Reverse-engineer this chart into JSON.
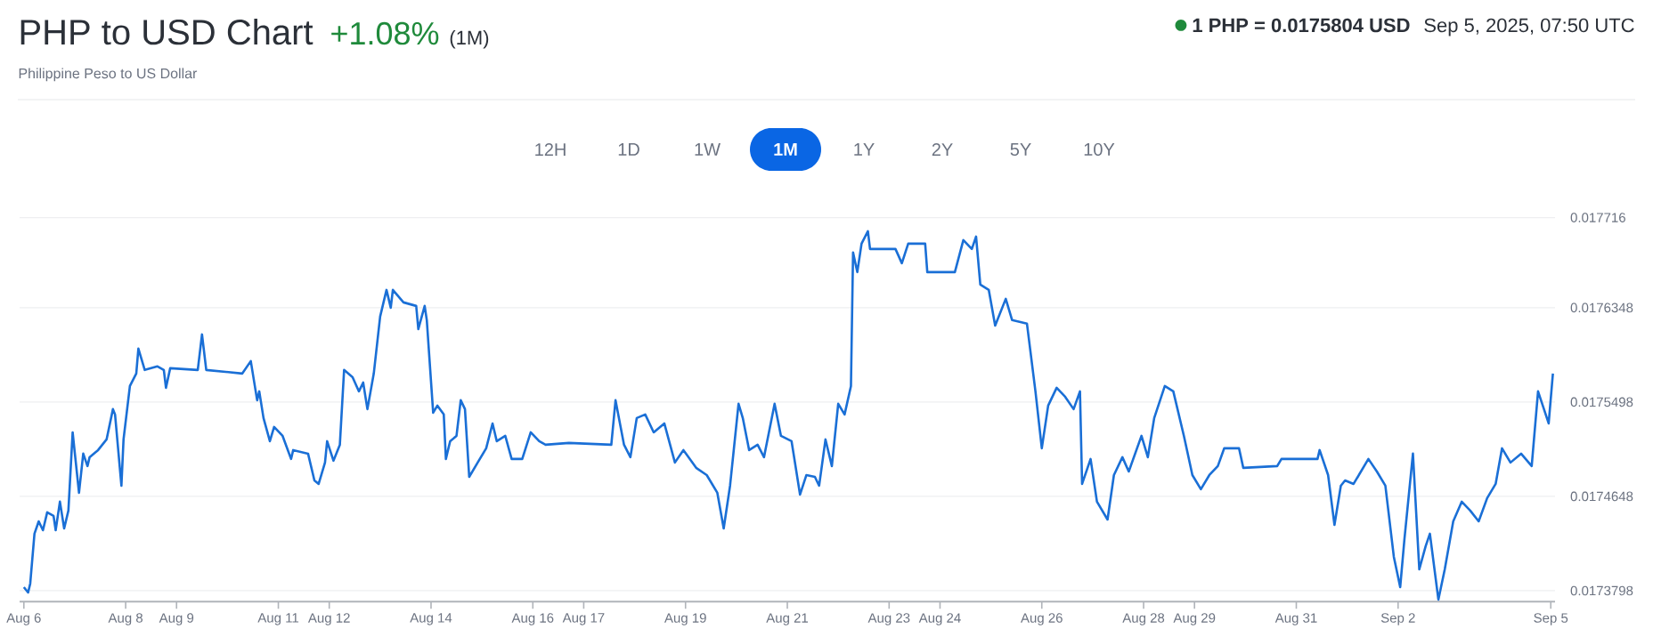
{
  "chart_data": {
    "type": "line",
    "title": "PHP to USD Chart",
    "subtitle": "Philippine Peso to US Dollar",
    "annotations": [
      "+1.08%",
      "(1M)",
      "1 PHP = 0.0175804 USD",
      "Sep 5, 2025, 07:50 UTC",
      "12H",
      "1D",
      "1W",
      "1M",
      "1Y",
      "2Y",
      "5Y",
      "10Y"
    ],
    "color": "#1a6fd6",
    "x": [
      "2025-08-06T00:00",
      "2025-08-06T02:00",
      "2025-08-06T03:00",
      "2025-08-06T05:00",
      "2025-08-06T07:00",
      "2025-08-06T09:00",
      "2025-08-06T11:00",
      "2025-08-06T14:00",
      "2025-08-06T15:00",
      "2025-08-06T17:00",
      "2025-08-06T19:00",
      "2025-08-06T21:00",
      "2025-08-06T23:00",
      "2025-08-07T02:00",
      "2025-08-07T04:00",
      "2025-08-07T06:00",
      "2025-08-07T07:00",
      "2025-08-07T11:00",
      "2025-08-07T15:00",
      "2025-08-07T18:00",
      "2025-08-07T19:00",
      "2025-08-07T22:00",
      "2025-08-07T23:00",
      "2025-08-08T02:00",
      "2025-08-08T05:00",
      "2025-08-08T06:00",
      "2025-08-08T09:00",
      "2025-08-08T15:00",
      "2025-08-08T18:00",
      "2025-08-08T19:00",
      "2025-08-08T21:00",
      "2025-08-09T10:00",
      "2025-08-09T12:00",
      "2025-08-09T14:00",
      "2025-08-10T07:00",
      "2025-08-10T11:00",
      "2025-08-10T14:00",
      "2025-08-10T15:00",
      "2025-08-10T17:00",
      "2025-08-10T20:00",
      "2025-08-10T22:00",
      "2025-08-11T02:00",
      "2025-08-11T06:00",
      "2025-08-11T07:00",
      "2025-08-11T14:00",
      "2025-08-11T17:00",
      "2025-08-11T19:00",
      "2025-08-11T22:00",
      "2025-08-11T23:00",
      "2025-08-12T02:00",
      "2025-08-12T05:00",
      "2025-08-12T07:00",
      "2025-08-12T11:00",
      "2025-08-12T14:00",
      "2025-08-12T16:00",
      "2025-08-12T18:00",
      "2025-08-12T21:00",
      "2025-08-13T00:00",
      "2025-08-13T03:00",
      "2025-08-13T05:00",
      "2025-08-13T06:00",
      "2025-08-13T11:00",
      "2025-08-13T17:00",
      "2025-08-13T18:00",
      "2025-08-13T21:00",
      "2025-08-13T22:00",
      "2025-08-14T01:00",
      "2025-08-14T03:00",
      "2025-08-14T06:00",
      "2025-08-14T07:00",
      "2025-08-14T09:00",
      "2025-08-14T12:00",
      "2025-08-14T14:00",
      "2025-08-14T16:00",
      "2025-08-14T18:00",
      "2025-08-14T22:00",
      "2025-08-15T02:00",
      "2025-08-15T05:00",
      "2025-08-15T07:00",
      "2025-08-15T11:00",
      "2025-08-15T14:00",
      "2025-08-15T19:00",
      "2025-08-15T23:00",
      "2025-08-16T03:00",
      "2025-08-16T06:00",
      "2025-08-16T17:00",
      "2025-08-17T13:00",
      "2025-08-17T15:00",
      "2025-08-17T19:00",
      "2025-08-17T22:00",
      "2025-08-18T01:00",
      "2025-08-18T05:00",
      "2025-08-18T09:00",
      "2025-08-18T14:00",
      "2025-08-18T19:00",
      "2025-08-18T23:00",
      "2025-08-19T05:00",
      "2025-08-19T10:00",
      "2025-08-19T15:00",
      "2025-08-19T18:00",
      "2025-08-19T21:00",
      "2025-08-20T01:00",
      "2025-08-20T03:00",
      "2025-08-20T06:00",
      "2025-08-20T10:00",
      "2025-08-20T13:00",
      "2025-08-20T18:00",
      "2025-08-20T21:00",
      "2025-08-21T02:00",
      "2025-08-21T06:00",
      "2025-08-21T09:00",
      "2025-08-21T13:00",
      "2025-08-21T15:00",
      "2025-08-21T18:00",
      "2025-08-21T21:00",
      "2025-08-22T00:00",
      "2025-08-22T03:00",
      "2025-08-22T06:00",
      "2025-08-22T07:00",
      "2025-08-22T09:00",
      "2025-08-22T11:00",
      "2025-08-22T14:00",
      "2025-08-22T15:00",
      "2025-08-23T03:00",
      "2025-08-23T06:00",
      "2025-08-23T09:00",
      "2025-08-23T17:00",
      "2025-08-23T18:00",
      "2025-08-24T07:00",
      "2025-08-24T11:00",
      "2025-08-24T15:00",
      "2025-08-24T17:00",
      "2025-08-24T19:00",
      "2025-08-24T23:00",
      "2025-08-25T02:00",
      "2025-08-25T07:00",
      "2025-08-25T10:00",
      "2025-08-25T17:00",
      "2025-08-25T21:00",
      "2025-08-26T00:00",
      "2025-08-26T03:00",
      "2025-08-26T07:00",
      "2025-08-26T11:00",
      "2025-08-26T15:00",
      "2025-08-26T18:00",
      "2025-08-26T19:00",
      "2025-08-26T23:00",
      "2025-08-27T02:00",
      "2025-08-27T07:00",
      "2025-08-27T10:00",
      "2025-08-27T14:00",
      "2025-08-27T17:00",
      "2025-08-27T23:00",
      "2025-08-28T02:00",
      "2025-08-28T05:00",
      "2025-08-28T10:00",
      "2025-08-28T14:00",
      "2025-08-28T19:00",
      "2025-08-28T23:00",
      "2025-08-29T03:00",
      "2025-08-29T07:00",
      "2025-08-29T11:00",
      "2025-08-29T14:00",
      "2025-08-29T21:00",
      "2025-08-29T23:00",
      "2025-08-30T15:00",
      "2025-08-30T17:00",
      "2025-08-31T10:00",
      "2025-08-31T11:00",
      "2025-08-31T15:00",
      "2025-08-31T18:00",
      "2025-08-31T21:00",
      "2025-08-31T23:00",
      "2025-09-01T03:00",
      "2025-09-01T10:00",
      "2025-09-01T14:00",
      "2025-09-01T18:00",
      "2025-09-01T22:00",
      "2025-09-02T01:00",
      "2025-09-02T03:00",
      "2025-09-02T07:00",
      "2025-09-02T10:00",
      "2025-09-02T13:00",
      "2025-09-02T15:00",
      "2025-09-02T19:00",
      "2025-09-02T22:00",
      "2025-09-03T02:00",
      "2025-09-03T06:00",
      "2025-09-03T10:00",
      "2025-09-03T14:00",
      "2025-09-03T18:00",
      "2025-09-03T22:00",
      "2025-09-04T01:00",
      "2025-09-04T05:00",
      "2025-09-04T10:00",
      "2025-09-04T15:00",
      "2025-09-04T18:00",
      "2025-09-04T23:00",
      "2025-09-05T01:00"
    ],
    "values": [
      0.017383,
      0.0173782,
      0.0173862,
      0.0174311,
      0.0174423,
      0.0174343,
      0.0174504,
      0.0174472,
      0.0174343,
      0.01746,
      0.0174359,
      0.017452,
      0.0175225,
      0.017468,
      0.0175033,
      0.0174921,
      0.0175001,
      0.0175065,
      0.0175161,
      0.0175434,
      0.0175386,
      0.0174744,
      0.0175161,
      0.0175642,
      0.0175755,
      0.0175979,
      0.0175787,
      0.0175819,
      0.0175787,
      0.0175626,
      0.0175803,
      0.0175787,
      0.0176107,
      0.0175787,
      0.0175755,
      0.0175867,
      0.0175514,
      0.0175594,
      0.0175354,
      0.0175145,
      0.0175273,
      0.0175193,
      0.0174985,
      0.0175065,
      0.0175033,
      0.0174792,
      0.017476,
      0.0174953,
      0.0175145,
      0.0174969,
      0.0175113,
      0.0175787,
      0.0175722,
      0.0175594,
      0.0175674,
      0.0175434,
      0.0175755,
      0.0176268,
      0.0176508,
      0.0176348,
      0.0176508,
      0.0176396,
      0.0176364,
      0.0176155,
      0.0176364,
      0.0176236,
      0.0175402,
      0.0175466,
      0.0175386,
      0.0174985,
      0.0175145,
      0.0175193,
      0.0175514,
      0.0175434,
      0.0174824,
      0.0174953,
      0.0175081,
      0.0175305,
      0.0175145,
      0.0175193,
      0.0174985,
      0.0174985,
      0.0175225,
      0.0175145,
      0.0175113,
      0.0175129,
      0.0175113,
      0.0175514,
      0.0175113,
      0.0175001,
      0.0175354,
      0.0175386,
      0.0175225,
      0.0175305,
      0.0174953,
      0.0175065,
      0.0174905,
      0.017484,
      0.017468,
      0.0174359,
      0.0174744,
      0.0175482,
      0.0175354,
      0.0175065,
      0.0175113,
      0.0175001,
      0.0175482,
      0.0175193,
      0.0175145,
      0.0174664,
      0.017484,
      0.0174824,
      0.0174744,
      0.0175161,
      0.0174921,
      0.0175482,
      0.0175386,
      0.0175642,
      0.0176845,
      0.0176669,
      0.0176925,
      0.0177037,
      0.0176877,
      0.0176877,
      0.0176749,
      0.0176925,
      0.0176925,
      0.0176669,
      0.0176669,
      0.0176957,
      0.0176877,
      0.0176989,
      0.0176556,
      0.0176508,
      0.0176187,
      0.0176428,
      0.0176236,
      0.0176204,
      0.0175594,
      0.0175081,
      0.0175466,
      0.0175626,
      0.0175546,
      0.0175434,
      0.0175594,
      0.017476,
      0.0174985,
      0.01746,
      0.0174439,
      0.017484,
      0.0175001,
      0.0174872,
      0.0175193,
      0.0175001,
      0.0175354,
      0.0175642,
      0.0175594,
      0.0175193,
      0.017484,
      0.0174712,
      0.017484,
      0.0174921,
      0.0175081,
      0.0175081,
      0.0174905,
      0.0174921,
      0.0174985,
      0.0174985,
      0.0175065,
      0.017484,
      0.0174391,
      0.0174744,
      0.0174792,
      0.017476,
      0.0174985,
      0.0174872,
      0.0174744,
      0.0174103,
      0.017383,
      0.0174263,
      0.0175033,
      0.017399,
      0.0174199,
      0.0174311,
      0.0173718,
      0.017399,
      0.0174423,
      0.01746,
      0.017452,
      0.0174423,
      0.0174632,
      0.017476,
      0.0175081,
      0.0174953,
      0.0175033,
      0.0174921,
      0.0175594,
      0.0175305,
      0.0175755
    ],
    "xlim": [
      "2025-08-05T22:00",
      "2025-09-05T02:00"
    ],
    "xticks": [
      {
        "value": "2025-08-06",
        "label": "Aug 6"
      },
      {
        "value": "2025-08-08",
        "label": "Aug 8"
      },
      {
        "value": "2025-08-09",
        "label": "Aug 9"
      },
      {
        "value": "2025-08-11",
        "label": "Aug 11"
      },
      {
        "value": "2025-08-12",
        "label": "Aug 12"
      },
      {
        "value": "2025-08-14",
        "label": "Aug 14"
      },
      {
        "value": "2025-08-16",
        "label": "Aug 16"
      },
      {
        "value": "2025-08-17",
        "label": "Aug 17"
      },
      {
        "value": "2025-08-19",
        "label": "Aug 19"
      },
      {
        "value": "2025-08-21",
        "label": "Aug 21"
      },
      {
        "value": "2025-08-23",
        "label": "Aug 23"
      },
      {
        "value": "2025-08-24",
        "label": "Aug 24"
      },
      {
        "value": "2025-08-26",
        "label": "Aug 26"
      },
      {
        "value": "2025-08-28",
        "label": "Aug 28"
      },
      {
        "value": "2025-08-29",
        "label": "Aug 29"
      },
      {
        "value": "2025-08-31",
        "label": "Aug 31"
      },
      {
        "value": "2025-09-02",
        "label": "Sep 2"
      },
      {
        "value": "2025-09-05",
        "label": "Sep 5"
      }
    ],
    "ylim": [
      0.01737,
      0.01772
    ],
    "yticks": [
      0.0173798,
      0.0174648,
      0.0175498,
      0.0176348,
      0.017716
    ],
    "grid": "y"
  }
}
